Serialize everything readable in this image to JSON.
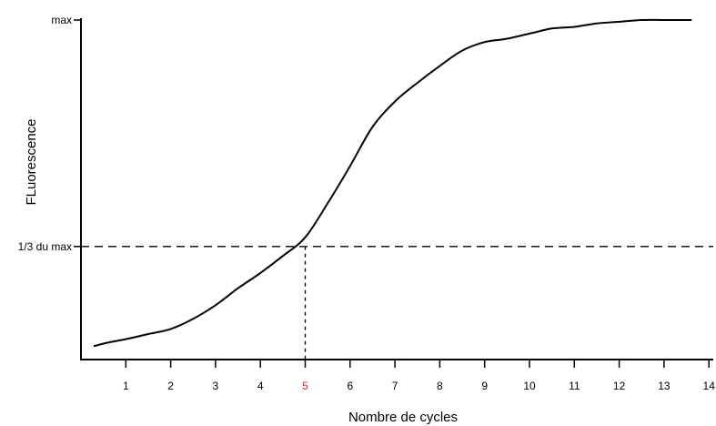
{
  "chart_data": {
    "type": "line",
    "title": "",
    "xlabel": "Nombre de cycles",
    "ylabel": "FLuorescence",
    "xlim": [
      0,
      14
    ],
    "ylim": [
      0,
      1
    ],
    "grid": false,
    "legend": "none",
    "x_ticks": [
      "1",
      "2",
      "3",
      "4",
      "5",
      "6",
      "7",
      "8",
      "9",
      "10",
      "11",
      "12",
      "13",
      "14"
    ],
    "highlighted_tick": "5",
    "highlight_color": "#e02020",
    "y_ticks": [
      {
        "value": 1.0,
        "label": "max"
      },
      {
        "value": 0.333,
        "label": "1/3 du max"
      }
    ],
    "threshold": {
      "x": 5,
      "y": 0.333
    },
    "line_color": "#000000",
    "series": [
      {
        "x": [
          0.3,
          0.6,
          1.0,
          1.5,
          2.0,
          2.5,
          3.0,
          3.5,
          4.0,
          4.5,
          5.0,
          5.5,
          6.0,
          6.5,
          7.0,
          7.5,
          8.0,
          8.5,
          9.0,
          9.5,
          10.0,
          10.5,
          11.0,
          11.5,
          12.0,
          12.5,
          13.0,
          13.6
        ],
        "y": [
          0.04,
          0.05,
          0.06,
          0.075,
          0.09,
          0.12,
          0.16,
          0.21,
          0.255,
          0.305,
          0.36,
          0.46,
          0.57,
          0.685,
          0.76,
          0.815,
          0.865,
          0.91,
          0.935,
          0.945,
          0.96,
          0.975,
          0.98,
          0.99,
          0.995,
          1.0,
          1.0,
          1.0
        ]
      }
    ]
  }
}
